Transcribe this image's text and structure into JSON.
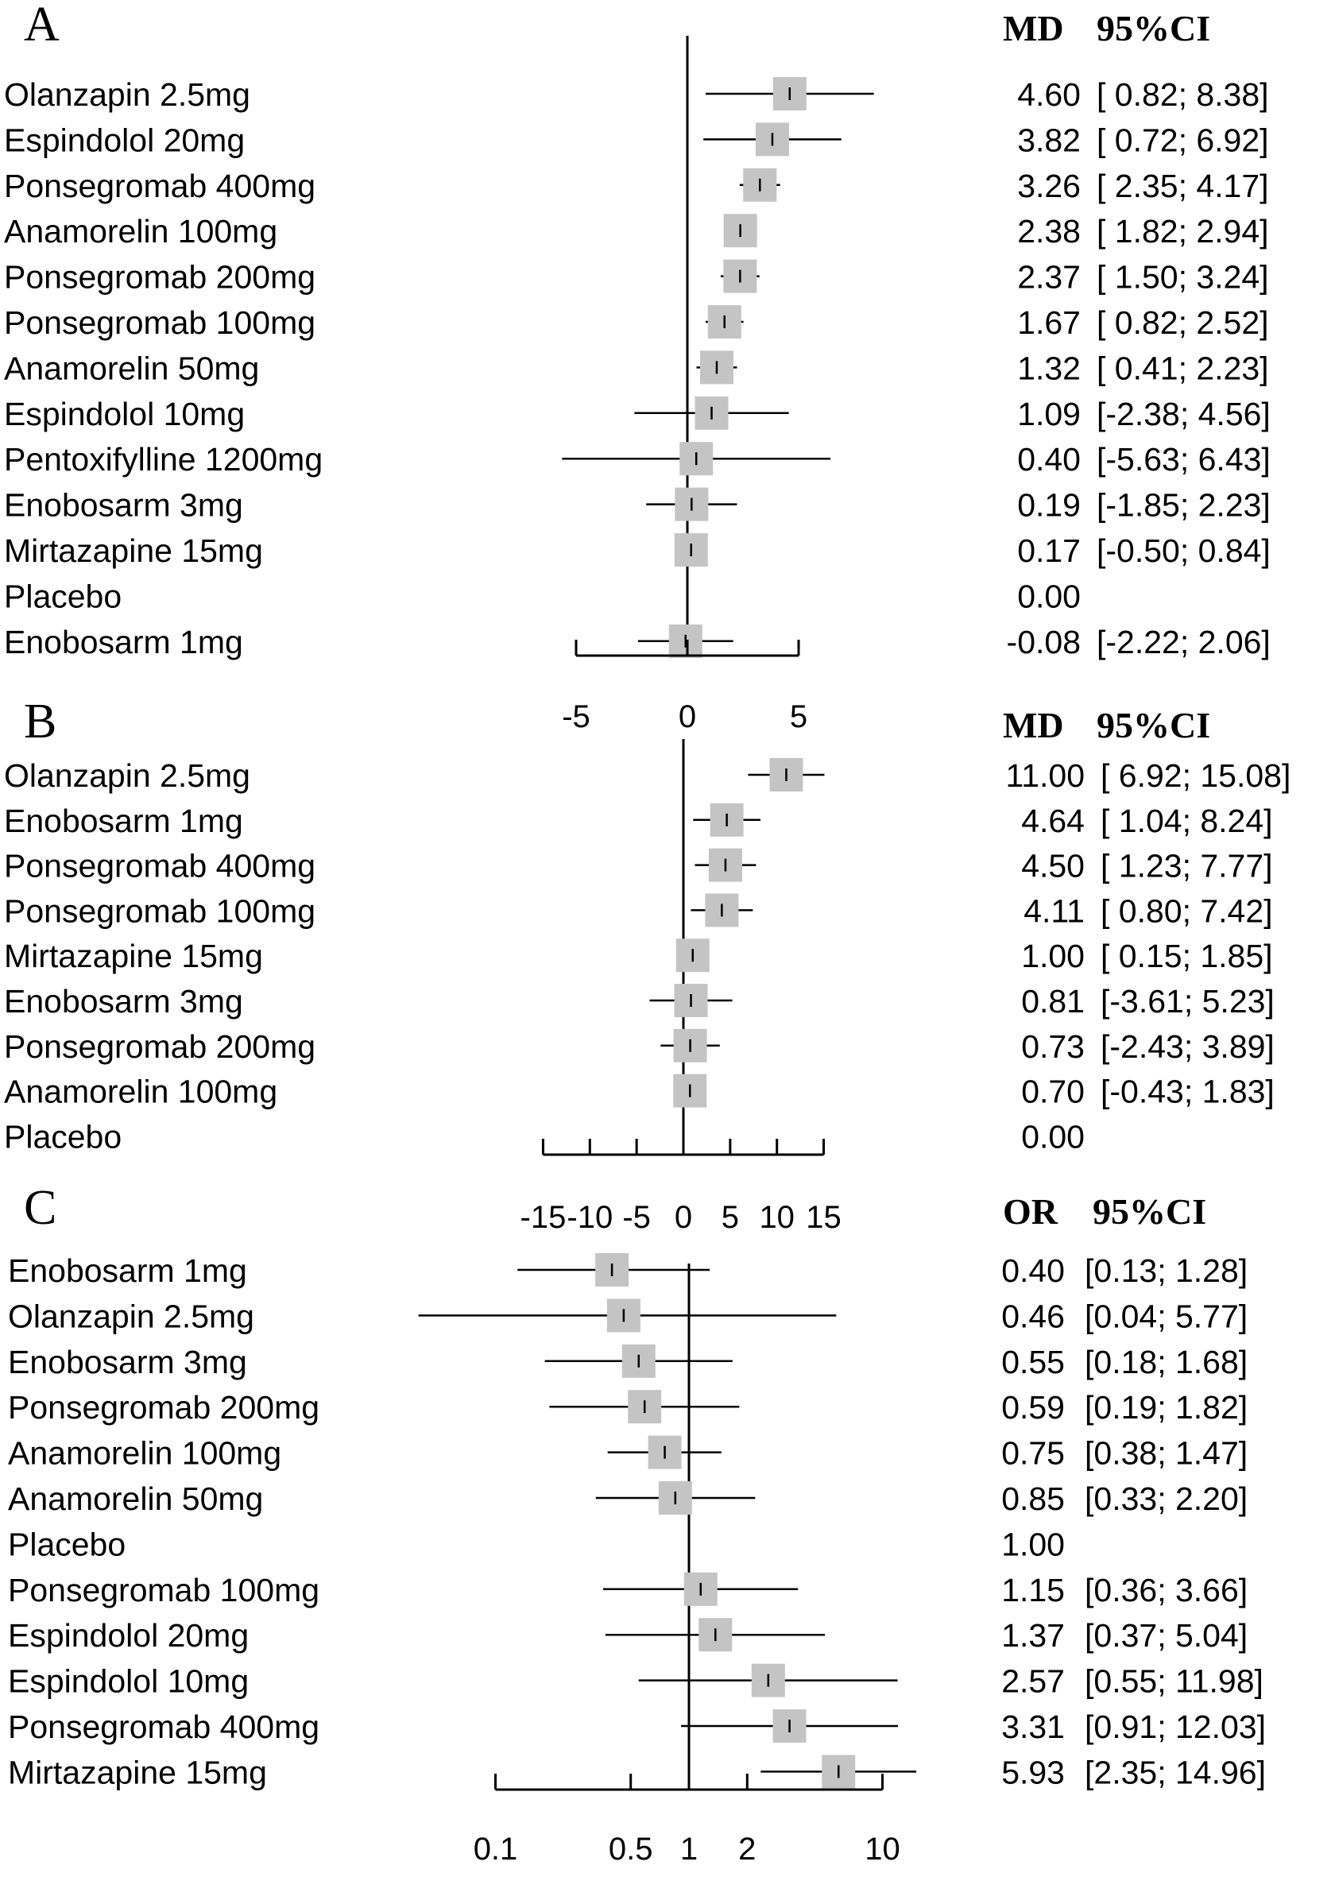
{
  "chart_data": [
    {
      "type": "forest",
      "panel_label": "A",
      "header": {
        "estimate": "MD",
        "ci": "95%CI"
      },
      "scale": "linear",
      "xlim": [
        -5,
        5
      ],
      "ticks": [
        {
          "value": -5,
          "label": "-5"
        },
        {
          "value": 0,
          "label": "0"
        },
        {
          "value": 5,
          "label": "5"
        }
      ],
      "rows": [
        {
          "label": "Olanzapin 2.5mg",
          "estimate": 4.6,
          "lower": 0.82,
          "upper": 8.38,
          "est_text": "4.60",
          "ci_text": "[ 0.82; 8.38]"
        },
        {
          "label": "Espindolol 20mg",
          "estimate": 3.82,
          "lower": 0.72,
          "upper": 6.92,
          "est_text": "3.82",
          "ci_text": "[ 0.72; 6.92]"
        },
        {
          "label": "Ponsegromab 400mg",
          "estimate": 3.26,
          "lower": 2.35,
          "upper": 4.17,
          "est_text": "3.26",
          "ci_text": "[ 2.35; 4.17]"
        },
        {
          "label": "Anamorelin 100mg",
          "estimate": 2.38,
          "lower": 1.82,
          "upper": 2.94,
          "est_text": "2.38",
          "ci_text": "[ 1.82; 2.94]"
        },
        {
          "label": "Ponsegromab 200mg",
          "estimate": 2.37,
          "lower": 1.5,
          "upper": 3.24,
          "est_text": "2.37",
          "ci_text": "[ 1.50; 3.24]"
        },
        {
          "label": "Ponsegromab 100mg",
          "estimate": 1.67,
          "lower": 0.82,
          "upper": 2.52,
          "est_text": "1.67",
          "ci_text": "[ 0.82; 2.52]"
        },
        {
          "label": "Anamorelin 50mg",
          "estimate": 1.32,
          "lower": 0.41,
          "upper": 2.23,
          "est_text": "1.32",
          "ci_text": "[ 0.41; 2.23]"
        },
        {
          "label": "Espindolol 10mg",
          "estimate": 1.09,
          "lower": -2.38,
          "upper": 4.56,
          "est_text": "1.09",
          "ci_text": "[-2.38; 4.56]"
        },
        {
          "label": "Pentoxifylline 1200mg",
          "estimate": 0.4,
          "lower": -5.63,
          "upper": 6.43,
          "est_text": "0.40",
          "ci_text": "[-5.63; 6.43]"
        },
        {
          "label": "Enobosarm 3mg",
          "estimate": 0.19,
          "lower": -1.85,
          "upper": 2.23,
          "est_text": "0.19",
          "ci_text": "[-1.85; 2.23]"
        },
        {
          "label": "Mirtazapine 15mg",
          "estimate": 0.17,
          "lower": -0.5,
          "upper": 0.84,
          "est_text": "0.17",
          "ci_text": "[-0.50; 0.84]"
        },
        {
          "label": "Placebo",
          "estimate": 0.0,
          "est_text": "0.00",
          "ci_text": "",
          "reference": true
        },
        {
          "label": "Enobosarm 1mg",
          "estimate": -0.08,
          "lower": -2.22,
          "upper": 2.06,
          "est_text": "-0.08",
          "ci_text": "[-2.22; 2.06]"
        }
      ]
    },
    {
      "type": "forest",
      "panel_label": "B",
      "header": {
        "estimate": "MD",
        "ci": "95%CI"
      },
      "scale": "linear",
      "xlim": [
        -15,
        15
      ],
      "ticks": [
        {
          "value": -15,
          "label": "-15"
        },
        {
          "value": -10,
          "label": "-10"
        },
        {
          "value": -5,
          "label": "-5"
        },
        {
          "value": 0,
          "label": "0"
        },
        {
          "value": 5,
          "label": "5"
        },
        {
          "value": 10,
          "label": "10"
        },
        {
          "value": 15,
          "label": "15"
        }
      ],
      "rows": [
        {
          "label": "Olanzapin 2.5mg",
          "estimate": 11.0,
          "lower": 6.92,
          "upper": 15.08,
          "est_text": "11.00",
          "ci_text": "[ 6.92; 15.08]"
        },
        {
          "label": "Enobosarm 1mg",
          "estimate": 4.64,
          "lower": 1.04,
          "upper": 8.24,
          "est_text": "4.64",
          "ci_text": "[ 1.04;  8.24]"
        },
        {
          "label": "Ponsegromab 400mg",
          "estimate": 4.5,
          "lower": 1.23,
          "upper": 7.77,
          "est_text": "4.50",
          "ci_text": "[ 1.23;  7.77]"
        },
        {
          "label": "Ponsegromab 100mg",
          "estimate": 4.11,
          "lower": 0.8,
          "upper": 7.42,
          "est_text": "4.11",
          "ci_text": "[ 0.80;  7.42]"
        },
        {
          "label": "Mirtazapine 15mg",
          "estimate": 1.0,
          "lower": 0.15,
          "upper": 1.85,
          "est_text": "1.00",
          "ci_text": "[ 0.15;  1.85]"
        },
        {
          "label": "Enobosarm 3mg",
          "estimate": 0.81,
          "lower": -3.61,
          "upper": 5.23,
          "est_text": "0.81",
          "ci_text": "[-3.61;  5.23]"
        },
        {
          "label": "Ponsegromab 200mg",
          "estimate": 0.73,
          "lower": -2.43,
          "upper": 3.89,
          "est_text": "0.73",
          "ci_text": "[-2.43;  3.89]"
        },
        {
          "label": "Anamorelin 100mg",
          "estimate": 0.7,
          "lower": -0.43,
          "upper": 1.83,
          "est_text": "0.70",
          "ci_text": "[-0.43;  1.83]"
        },
        {
          "label": "Placebo",
          "estimate": 0.0,
          "est_text": "0.00",
          "ci_text": "",
          "reference": true
        }
      ]
    },
    {
      "type": "forest",
      "panel_label": "C",
      "header": {
        "estimate": "OR",
        "ci": "95%CI"
      },
      "scale": "log",
      "xlim": [
        0.1,
        10
      ],
      "ticks": [
        {
          "value": 0.1,
          "label": "0.1"
        },
        {
          "value": 0.5,
          "label": "0.5"
        },
        {
          "value": 1,
          "label": "1"
        },
        {
          "value": 2,
          "label": "2"
        },
        {
          "value": 10,
          "label": "10"
        }
      ],
      "rows": [
        {
          "label": "Enobosarm 1mg",
          "estimate": 0.4,
          "lower": 0.13,
          "upper": 1.28,
          "est_text": "0.40",
          "ci_text": "[0.13;  1.28]"
        },
        {
          "label": "Olanzapin 2.5mg",
          "estimate": 0.46,
          "lower": 0.04,
          "upper": 5.77,
          "est_text": "0.46",
          "ci_text": "[0.04;  5.77]"
        },
        {
          "label": "Enobosarm 3mg",
          "estimate": 0.55,
          "lower": 0.18,
          "upper": 1.68,
          "est_text": "0.55",
          "ci_text": "[0.18;  1.68]"
        },
        {
          "label": "Ponsegromab 200mg",
          "estimate": 0.59,
          "lower": 0.19,
          "upper": 1.82,
          "est_text": "0.59",
          "ci_text": "[0.19;  1.82]"
        },
        {
          "label": "Anamorelin 100mg",
          "estimate": 0.75,
          "lower": 0.38,
          "upper": 1.47,
          "est_text": "0.75",
          "ci_text": "[0.38;  1.47]"
        },
        {
          "label": "Anamorelin 50mg",
          "estimate": 0.85,
          "lower": 0.33,
          "upper": 2.2,
          "est_text": "0.85",
          "ci_text": "[0.33;  2.20]"
        },
        {
          "label": "Placebo",
          "estimate": 1.0,
          "est_text": "1.00",
          "ci_text": "",
          "reference": true
        },
        {
          "label": "Ponsegromab 100mg",
          "estimate": 1.15,
          "lower": 0.36,
          "upper": 3.66,
          "est_text": "1.15",
          "ci_text": "[0.36;  3.66]"
        },
        {
          "label": "Espindolol 20mg",
          "estimate": 1.37,
          "lower": 0.37,
          "upper": 5.04,
          "est_text": "1.37",
          "ci_text": "[0.37;  5.04]"
        },
        {
          "label": "Espindolol 10mg",
          "estimate": 2.57,
          "lower": 0.55,
          "upper": 11.98,
          "est_text": "2.57",
          "ci_text": "[0.55; 11.98]"
        },
        {
          "label": "Ponsegromab 400mg",
          "estimate": 3.31,
          "lower": 0.91,
          "upper": 12.03,
          "est_text": "3.31",
          "ci_text": "[0.91; 12.03]"
        },
        {
          "label": "Mirtazapine 15mg",
          "estimate": 5.93,
          "lower": 2.35,
          "upper": 14.96,
          "est_text": "5.93",
          "ci_text": "[2.35; 14.96]"
        }
      ]
    }
  ],
  "colors": {
    "box": "#c4c4c4",
    "line": "#000000",
    "text": "#000000"
  }
}
